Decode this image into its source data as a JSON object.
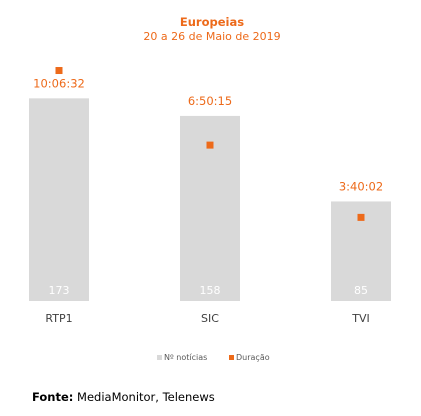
{
  "chart_data": {
    "type": "bar",
    "title": "Europeias",
    "subtitle": "20 a 26 de Maio de 2019",
    "categories": [
      "RTP1",
      "SIC",
      "TVI"
    ],
    "series": [
      {
        "name": "Nº notícias",
        "type": "bar",
        "values": [
          173,
          158,
          85
        ],
        "value_labels": [
          "173",
          "158",
          "85"
        ]
      },
      {
        "name": "Duração",
        "type": "marker",
        "values": [
          "10:06:32",
          "6:50:15",
          "3:40:02"
        ],
        "value_labels": [
          "10:06:32",
          "6:50:15",
          "3:40:02"
        ]
      }
    ],
    "bar_ylim": [
      0,
      175
    ],
    "duration_ylim_seconds": [
      0,
      45000
    ],
    "duration_values_seconds": [
      36392,
      24615,
      13202
    ],
    "legend_position": "bottom",
    "grid": false,
    "colors": {
      "bar": "#d9d9d9",
      "bar_label": "#ffffff",
      "marker": "#ed6a1a",
      "title": "#ed6a1a",
      "duration_label": "#ed6a1a",
      "category_label": "#404040",
      "legend_text": "#595959"
    }
  },
  "source": {
    "label": "Fonte:",
    "text": "MediaMonitor, Telenews"
  }
}
